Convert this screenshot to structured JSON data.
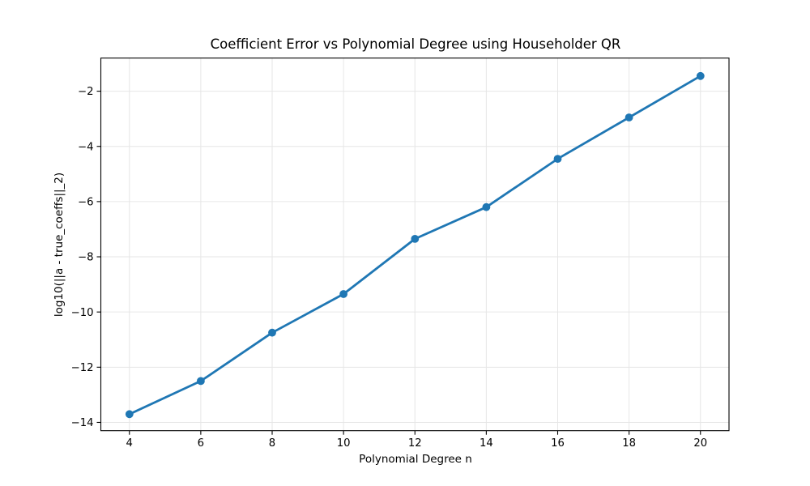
{
  "figure": {
    "background": "#ffffff"
  },
  "chart_data": {
    "type": "line",
    "title": "Coefficient Error vs Polynomial Degree using Householder QR",
    "xlabel": "Polynomial Degree n",
    "ylabel": "log10(||a - true_coeffs||_2)",
    "x": [
      4,
      6,
      8,
      10,
      12,
      14,
      16,
      18,
      20
    ],
    "y": [
      -13.7,
      -12.5,
      -10.75,
      -9.35,
      -7.35,
      -6.2,
      -4.45,
      -2.95,
      -1.45
    ],
    "xlim": [
      3.2,
      20.8
    ],
    "ylim": [
      -14.3,
      -0.8
    ],
    "xticks": [
      4,
      6,
      8,
      10,
      12,
      14,
      16,
      18,
      20
    ],
    "xtick_labels": [
      "4",
      "6",
      "8",
      "10",
      "12",
      "14",
      "16",
      "18",
      "20"
    ],
    "yticks": [
      -2,
      -4,
      -6,
      -8,
      -10,
      -12,
      -14
    ],
    "ytick_labels": [
      "−2",
      "−4",
      "−6",
      "−8",
      "−10",
      "−12",
      "−14"
    ],
    "grid": true,
    "legend": false,
    "line_color": "#1f77b4",
    "marker": "o",
    "grid_color": "#e6e6e6",
    "spine_color": "#000000",
    "text_color": "#000000"
  }
}
